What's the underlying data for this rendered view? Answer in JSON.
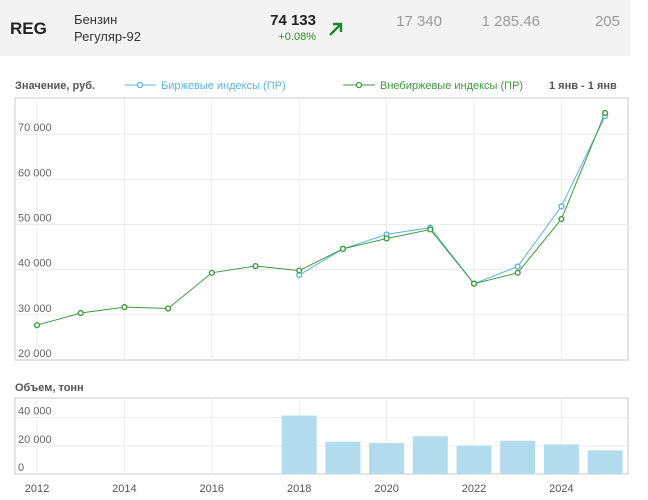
{
  "ticker": {
    "code": "REG",
    "name_line1": "Бензин",
    "name_line2": "Регуляр-92",
    "price": "74 133",
    "change": "+0.08%",
    "stat1": "17 340",
    "stat2": "1 285.46",
    "stat3": "205",
    "arrow_icon": "arrow-up-right-icon",
    "change_color": "#2f8a2f"
  },
  "legend": {
    "value_label": "Значение, руб.",
    "exchange_label": "Биржевые индексы (ПР)",
    "otc_label": "Внебиржевые индексы (ПР)",
    "period_label": "1 янв - 1 янв"
  },
  "chart_data": [
    {
      "type": "line",
      "title": "",
      "ylabel": "Значение, руб.",
      "ylim": [
        20000,
        78000
      ],
      "yticks": [
        20000,
        30000,
        40000,
        50000,
        60000,
        70000
      ],
      "ytick_labels": [
        "20 000",
        "30 000",
        "40 000",
        "50 000",
        "60 000",
        "70 000"
      ],
      "xlim": [
        2012,
        2025.5
      ],
      "grid": true,
      "legend_position": "top",
      "series": [
        {
          "name": "Биржевые индексы (ПР)",
          "color": "#5ab4e0",
          "x": [
            2018,
            2019,
            2020,
            2021,
            2022,
            2023,
            2024,
            2025
          ],
          "values": [
            38800,
            44600,
            47800,
            49300,
            36900,
            40700,
            54000,
            74000
          ]
        },
        {
          "name": "Внебиржевые индексы (ПР)",
          "color": "#3e9a3e",
          "x": [
            2012,
            2013,
            2014,
            2015,
            2016,
            2017,
            2018,
            2019,
            2020,
            2021,
            2022,
            2023,
            2024,
            2025
          ],
          "values": [
            27700,
            30400,
            31700,
            31400,
            39300,
            40800,
            39800,
            44600,
            46900,
            48900,
            36900,
            39300,
            51200,
            74700
          ]
        }
      ]
    },
    {
      "type": "bar",
      "title": "",
      "ylabel": "Объем, тонн",
      "ylim": [
        0,
        54000
      ],
      "yticks": [
        0,
        20000,
        40000
      ],
      "ytick_labels": [
        "0",
        "20 000",
        "40 000"
      ],
      "xlim": [
        2012,
        2025.5
      ],
      "xticks": [
        2012,
        2014,
        2016,
        2018,
        2020,
        2022,
        2024
      ],
      "xtick_labels": [
        "2012",
        "2014",
        "2016",
        "2018",
        "2020",
        "2022",
        "2024"
      ],
      "grid": true,
      "color": "#b3dbee",
      "categories": [
        2018,
        2019,
        2020,
        2021,
        2022,
        2023,
        2024,
        2025
      ],
      "values": [
        41500,
        23000,
        22000,
        26800,
        20200,
        23600,
        21000,
        16800
      ]
    }
  ]
}
